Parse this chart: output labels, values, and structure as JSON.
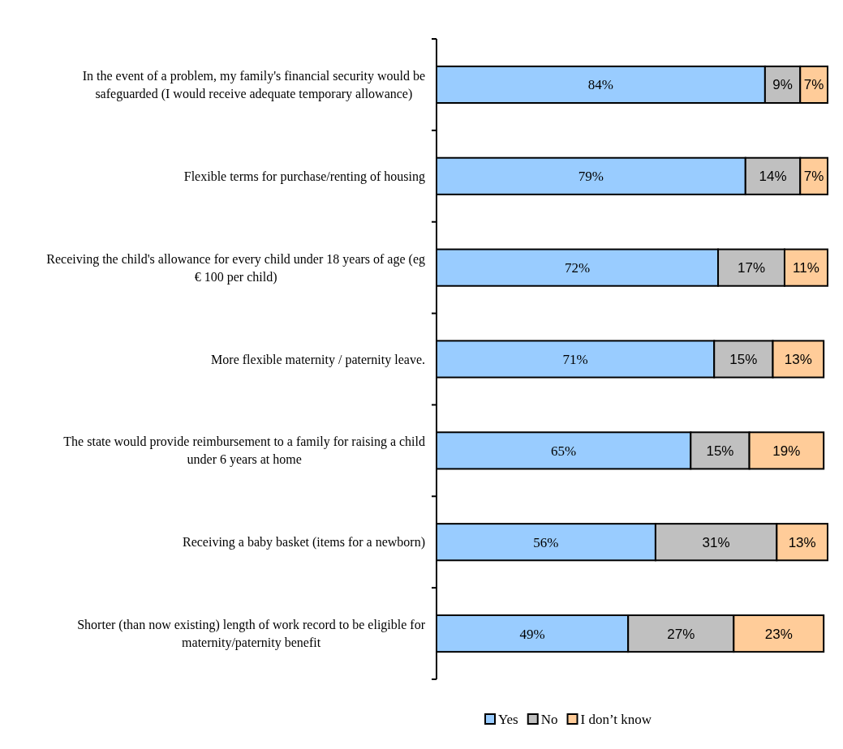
{
  "chart_data": {
    "type": "bar",
    "orientation": "horizontal",
    "stacked": true,
    "legend": "bottom",
    "categories": [
      "In the event of a problem, my family's financial security would be safeguarded (I would receive adequate temporary allowance)",
      "Flexible terms for purchase/renting of housing",
      "Receiving the child's allowance for every child under 18 years of age (eg € 100 per child)",
      "More flexible maternity / paternity leave.",
      "The state would provide reimbursement to a family for raising a child under 6 years at home",
      "Receiving a baby basket (items for a newborn)",
      "Shorter (than now existing) length of work record to be eligible for maternity/paternity benefit"
    ],
    "series": [
      {
        "name": "Yes",
        "color": "#99ccff",
        "values": [
          84,
          79,
          72,
          71,
          65,
          56,
          49
        ],
        "value_labels": [
          "84%",
          "79%",
          "72%",
          "71%",
          "65%",
          "56%",
          "49%"
        ]
      },
      {
        "name": "No",
        "color": "#c0c0c0",
        "values": [
          9,
          14,
          17,
          15,
          15,
          31,
          27
        ],
        "value_labels": [
          "9%",
          "14%",
          "17%",
          "15%",
          "15%",
          "31%",
          "27%"
        ]
      },
      {
        "name": "I don’t know",
        "color": "#ffcc99",
        "values": [
          7,
          7,
          11,
          13,
          19,
          13,
          23
        ],
        "value_labels": [
          "7%",
          "7%",
          "11%",
          "13%",
          "19%",
          "13%",
          "23%"
        ]
      }
    ]
  }
}
